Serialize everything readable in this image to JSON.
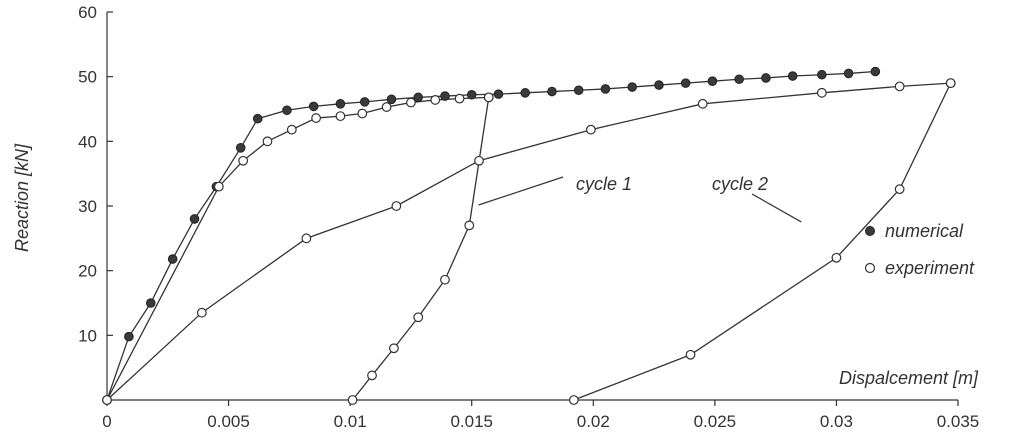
{
  "chart_data": {
    "type": "scatter",
    "title": "",
    "xlabel": "Dispalcement [m]",
    "ylabel": "Reaction [kN]",
    "xlim": [
      0,
      0.035
    ],
    "ylim": [
      0,
      60
    ],
    "xticks": [
      {
        "value": 0,
        "label": "0"
      },
      {
        "value": 0.005,
        "label": "0.005"
      },
      {
        "value": 0.01,
        "label": "0.01"
      },
      {
        "value": 0.015,
        "label": "0.015"
      },
      {
        "value": 0.02,
        "label": "0.02"
      },
      {
        "value": 0.025,
        "label": "0.025"
      },
      {
        "value": 0.03,
        "label": "0.03"
      },
      {
        "value": 0.035,
        "label": "0.035"
      }
    ],
    "yticks": [
      {
        "value": 10,
        "label": "10"
      },
      {
        "value": 20,
        "label": "20"
      },
      {
        "value": 30,
        "label": "30"
      },
      {
        "value": 40,
        "label": "40"
      },
      {
        "value": 50,
        "label": "50"
      },
      {
        "value": 60,
        "label": "60"
      }
    ],
    "grid": false,
    "legend_position": "right",
    "series": [
      {
        "name": "numerical",
        "marker": "filled-circle",
        "color": "#333333",
        "points": [
          [
            0,
            0
          ],
          [
            0.0009,
            9.8
          ],
          [
            0.0018,
            15
          ],
          [
            0.0027,
            21.8
          ],
          [
            0.0036,
            28
          ],
          [
            0.0045,
            33
          ],
          [
            0.0055,
            39
          ],
          [
            0.0062,
            43.5
          ],
          [
            0.0074,
            44.8
          ],
          [
            0.0085,
            45.4
          ],
          [
            0.0096,
            45.8
          ],
          [
            0.0106,
            46.1
          ],
          [
            0.0117,
            46.5
          ],
          [
            0.0128,
            46.8
          ],
          [
            0.0139,
            47
          ],
          [
            0.015,
            47.2
          ],
          [
            0.0161,
            47.3
          ],
          [
            0.0172,
            47.5
          ],
          [
            0.0183,
            47.7
          ],
          [
            0.0194,
            47.9
          ],
          [
            0.0205,
            48.1
          ],
          [
            0.0216,
            48.4
          ],
          [
            0.0227,
            48.7
          ],
          [
            0.0238,
            49
          ],
          [
            0.0249,
            49.3
          ],
          [
            0.026,
            49.6
          ],
          [
            0.0271,
            49.8
          ],
          [
            0.0282,
            50.1
          ],
          [
            0.0294,
            50.3
          ],
          [
            0.0305,
            50.5
          ],
          [
            0.0316,
            50.8
          ]
        ]
      },
      {
        "name": "experiment",
        "marker": "open-circle",
        "color": "#333333",
        "segments": [
          [
            [
              0,
              0
            ],
            [
              0.0046,
              33
            ],
            [
              0.0056,
              37
            ],
            [
              0.0066,
              40
            ],
            [
              0.0076,
              41.8
            ],
            [
              0.0086,
              43.6
            ],
            [
              0.0096,
              43.9
            ],
            [
              0.0105,
              44.3
            ],
            [
              0.0115,
              45.3
            ],
            [
              0.0125,
              46
            ],
            [
              0.0135,
              46.4
            ],
            [
              0.0145,
              46.6
            ],
            [
              0.0157,
              46.8
            ]
          ],
          [
            [
              0.0157,
              46.8
            ],
            [
              0.0149,
              27
            ],
            [
              0.0139,
              18.6
            ],
            [
              0.0128,
              12.8
            ],
            [
              0.0118,
              8
            ],
            [
              0.0109,
              3.8
            ],
            [
              0.0101,
              0
            ]
          ],
          [
            [
              0,
              0
            ],
            [
              0.0039,
              13.5
            ],
            [
              0.0082,
              25
            ],
            [
              0.0119,
              30
            ],
            [
              0.0153,
              37
            ],
            [
              0.0199,
              41.8
            ],
            [
              0.0245,
              45.8
            ],
            [
              0.0294,
              47.5
            ],
            [
              0.0326,
              48.5
            ],
            [
              0.0347,
              49
            ]
          ],
          [
            [
              0.0347,
              49
            ],
            [
              0.0326,
              32.6
            ],
            [
              0.03,
              22
            ],
            [
              0.024,
              7
            ],
            [
              0.0192,
              0
            ]
          ]
        ]
      }
    ],
    "annotations": [
      {
        "text": "cycle 1",
        "target": [
          0.0152,
          30
        ]
      },
      {
        "text": "cycle 2",
        "target": [
          0.0288,
          28
        ]
      }
    ]
  }
}
